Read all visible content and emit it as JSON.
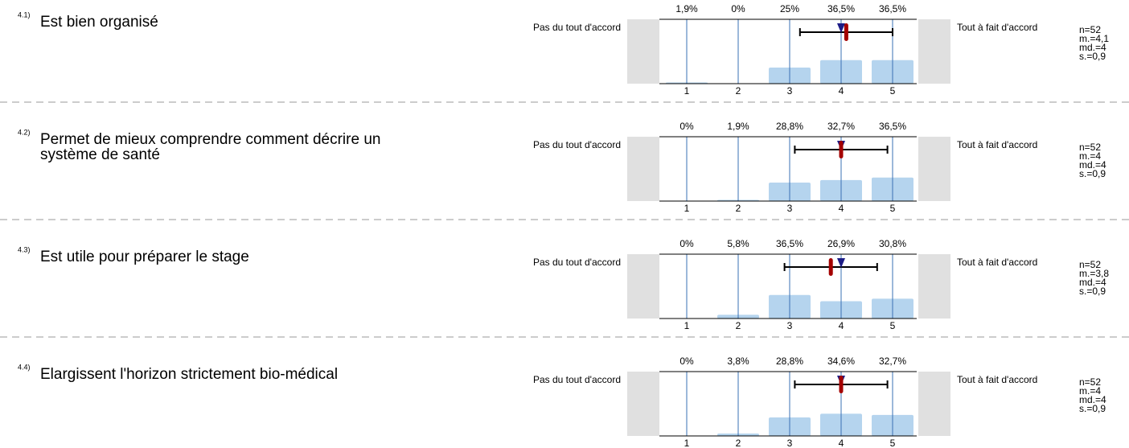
{
  "chart_data": [
    {
      "type": "bar",
      "number": "4.1)",
      "title": [
        "Est bien organisé"
      ],
      "left_label": "Pas du tout d'accord",
      "right_label": "Tout à fait d'accord",
      "categories": [
        "1",
        "2",
        "3",
        "4",
        "5"
      ],
      "values": [
        1.9,
        0,
        25,
        36.5,
        36.5
      ],
      "value_labels": [
        "1,9%",
        "0%",
        "25%",
        "36,5%",
        "36,5%"
      ],
      "xlim": [
        0.5,
        5.5
      ],
      "ylim": [
        0,
        100
      ],
      "stats": {
        "n": 52,
        "n_label": "n=52",
        "mean": 4.1,
        "mean_label": "m.=4,1",
        "median": 4,
        "median_label": "md.=4",
        "sd": 0.9,
        "sd_label": "s.=0,9"
      }
    },
    {
      "type": "bar",
      "number": "4.2)",
      "title": [
        "Permet de mieux comprendre comment décrire un",
        "système de santé"
      ],
      "left_label": "Pas du tout d'accord",
      "right_label": "Tout à fait d'accord",
      "categories": [
        "1",
        "2",
        "3",
        "4",
        "5"
      ],
      "values": [
        0,
        1.9,
        28.8,
        32.7,
        36.5
      ],
      "value_labels": [
        "0%",
        "1,9%",
        "28,8%",
        "32,7%",
        "36,5%"
      ],
      "xlim": [
        0.5,
        5.5
      ],
      "ylim": [
        0,
        100
      ],
      "stats": {
        "n": 52,
        "n_label": "n=52",
        "mean": 4,
        "mean_label": "m.=4",
        "median": 4,
        "median_label": "md.=4",
        "sd": 0.9,
        "sd_label": "s.=0,9"
      }
    },
    {
      "type": "bar",
      "number": "4.3)",
      "title": [
        "Est utile pour préparer le stage"
      ],
      "left_label": "Pas du tout d'accord",
      "right_label": "Tout à fait d'accord",
      "categories": [
        "1",
        "2",
        "3",
        "4",
        "5"
      ],
      "values": [
        0,
        5.8,
        36.5,
        26.9,
        30.8
      ],
      "value_labels": [
        "0%",
        "5,8%",
        "36,5%",
        "26,9%",
        "30,8%"
      ],
      "xlim": [
        0.5,
        5.5
      ],
      "ylim": [
        0,
        100
      ],
      "stats": {
        "n": 52,
        "n_label": "n=52",
        "mean": 3.8,
        "mean_label": "m.=3,8",
        "median": 4,
        "median_label": "md.=4",
        "sd": 0.9,
        "sd_label": "s.=0,9"
      }
    },
    {
      "type": "bar",
      "number": "4.4)",
      "title": [
        "Elargissent l'horizon strictement bio-médical"
      ],
      "left_label": "Pas du tout d'accord",
      "right_label": "Tout à fait d'accord",
      "categories": [
        "1",
        "2",
        "3",
        "4",
        "5"
      ],
      "values": [
        0,
        3.8,
        28.8,
        34.6,
        32.7
      ],
      "value_labels": [
        "0%",
        "3,8%",
        "28,8%",
        "34,6%",
        "32,7%"
      ],
      "xlim": [
        0.5,
        5.5
      ],
      "ylim": [
        0,
        100
      ],
      "stats": {
        "n": 52,
        "n_label": "n=52",
        "mean": 4,
        "mean_label": "m.=4",
        "median": 4,
        "median_label": "md.=4",
        "sd": 0.9,
        "sd_label": "s.=0,9"
      }
    }
  ]
}
